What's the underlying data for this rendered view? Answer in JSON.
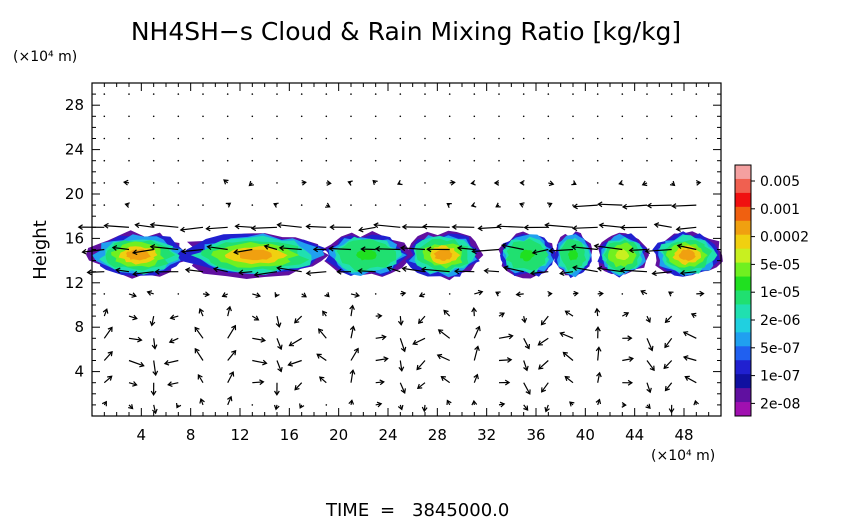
{
  "chart_data": {
    "type": "heatmap",
    "title": "NH4SH−s Cloud & Rain Mixing Ratio [kg/kg]",
    "xlabel": "",
    "ylabel": "Height",
    "x_unit_label": "(×10⁴ m)",
    "y_unit_label": "(×10⁴ m)",
    "xlim": [
      0,
      51
    ],
    "ylim": [
      0,
      30
    ],
    "x_ticks": [
      4,
      8,
      12,
      16,
      20,
      24,
      28,
      32,
      36,
      40,
      44,
      48
    ],
    "y_ticks": [
      4,
      8,
      12,
      16,
      20,
      24,
      28
    ],
    "time_label": "TIME",
    "time_value": "3845000.0",
    "colorbar": {
      "labels": [
        "0.005",
        "0.001",
        "0.0002",
        "5e-05",
        "1e-05",
        "2e-06",
        "5e-07",
        "1e-07",
        "2e-08"
      ],
      "colors": [
        "#f4a0a0",
        "#f06050",
        "#f01010",
        "#f06010",
        "#f0a010",
        "#f0d010",
        "#c8f020",
        "#70f020",
        "#20e020",
        "#20e070",
        "#20e0b0",
        "#20d0e0",
        "#20a0f0",
        "#2060f0",
        "#2020d0",
        "#1010a0",
        "#6010a0",
        "#a010b0"
      ]
    },
    "cloud_layer": {
      "y_bottom": 12.5,
      "y_top": 16.5,
      "segments": [
        {
          "x0": 0.0,
          "x1": 7.5,
          "core": 0.0002
        },
        {
          "x0": 7.5,
          "x1": 19.0,
          "core": 0.0002
        },
        {
          "x0": 19.0,
          "x1": 25.5,
          "core": 1e-05
        },
        {
          "x0": 25.5,
          "x1": 31.5,
          "core": 0.0002
        },
        {
          "x0": 33.0,
          "x1": 37.5,
          "core": 1e-05
        },
        {
          "x0": 37.5,
          "x1": 40.5,
          "core": 1e-05
        },
        {
          "x0": 41.0,
          "x1": 45.0,
          "core": 5e-05
        },
        {
          "x0": 45.5,
          "x1": 51.0,
          "core": 0.0002
        }
      ]
    },
    "wind_field": {
      "dx": 2.0,
      "dy": 2.0
    }
  }
}
